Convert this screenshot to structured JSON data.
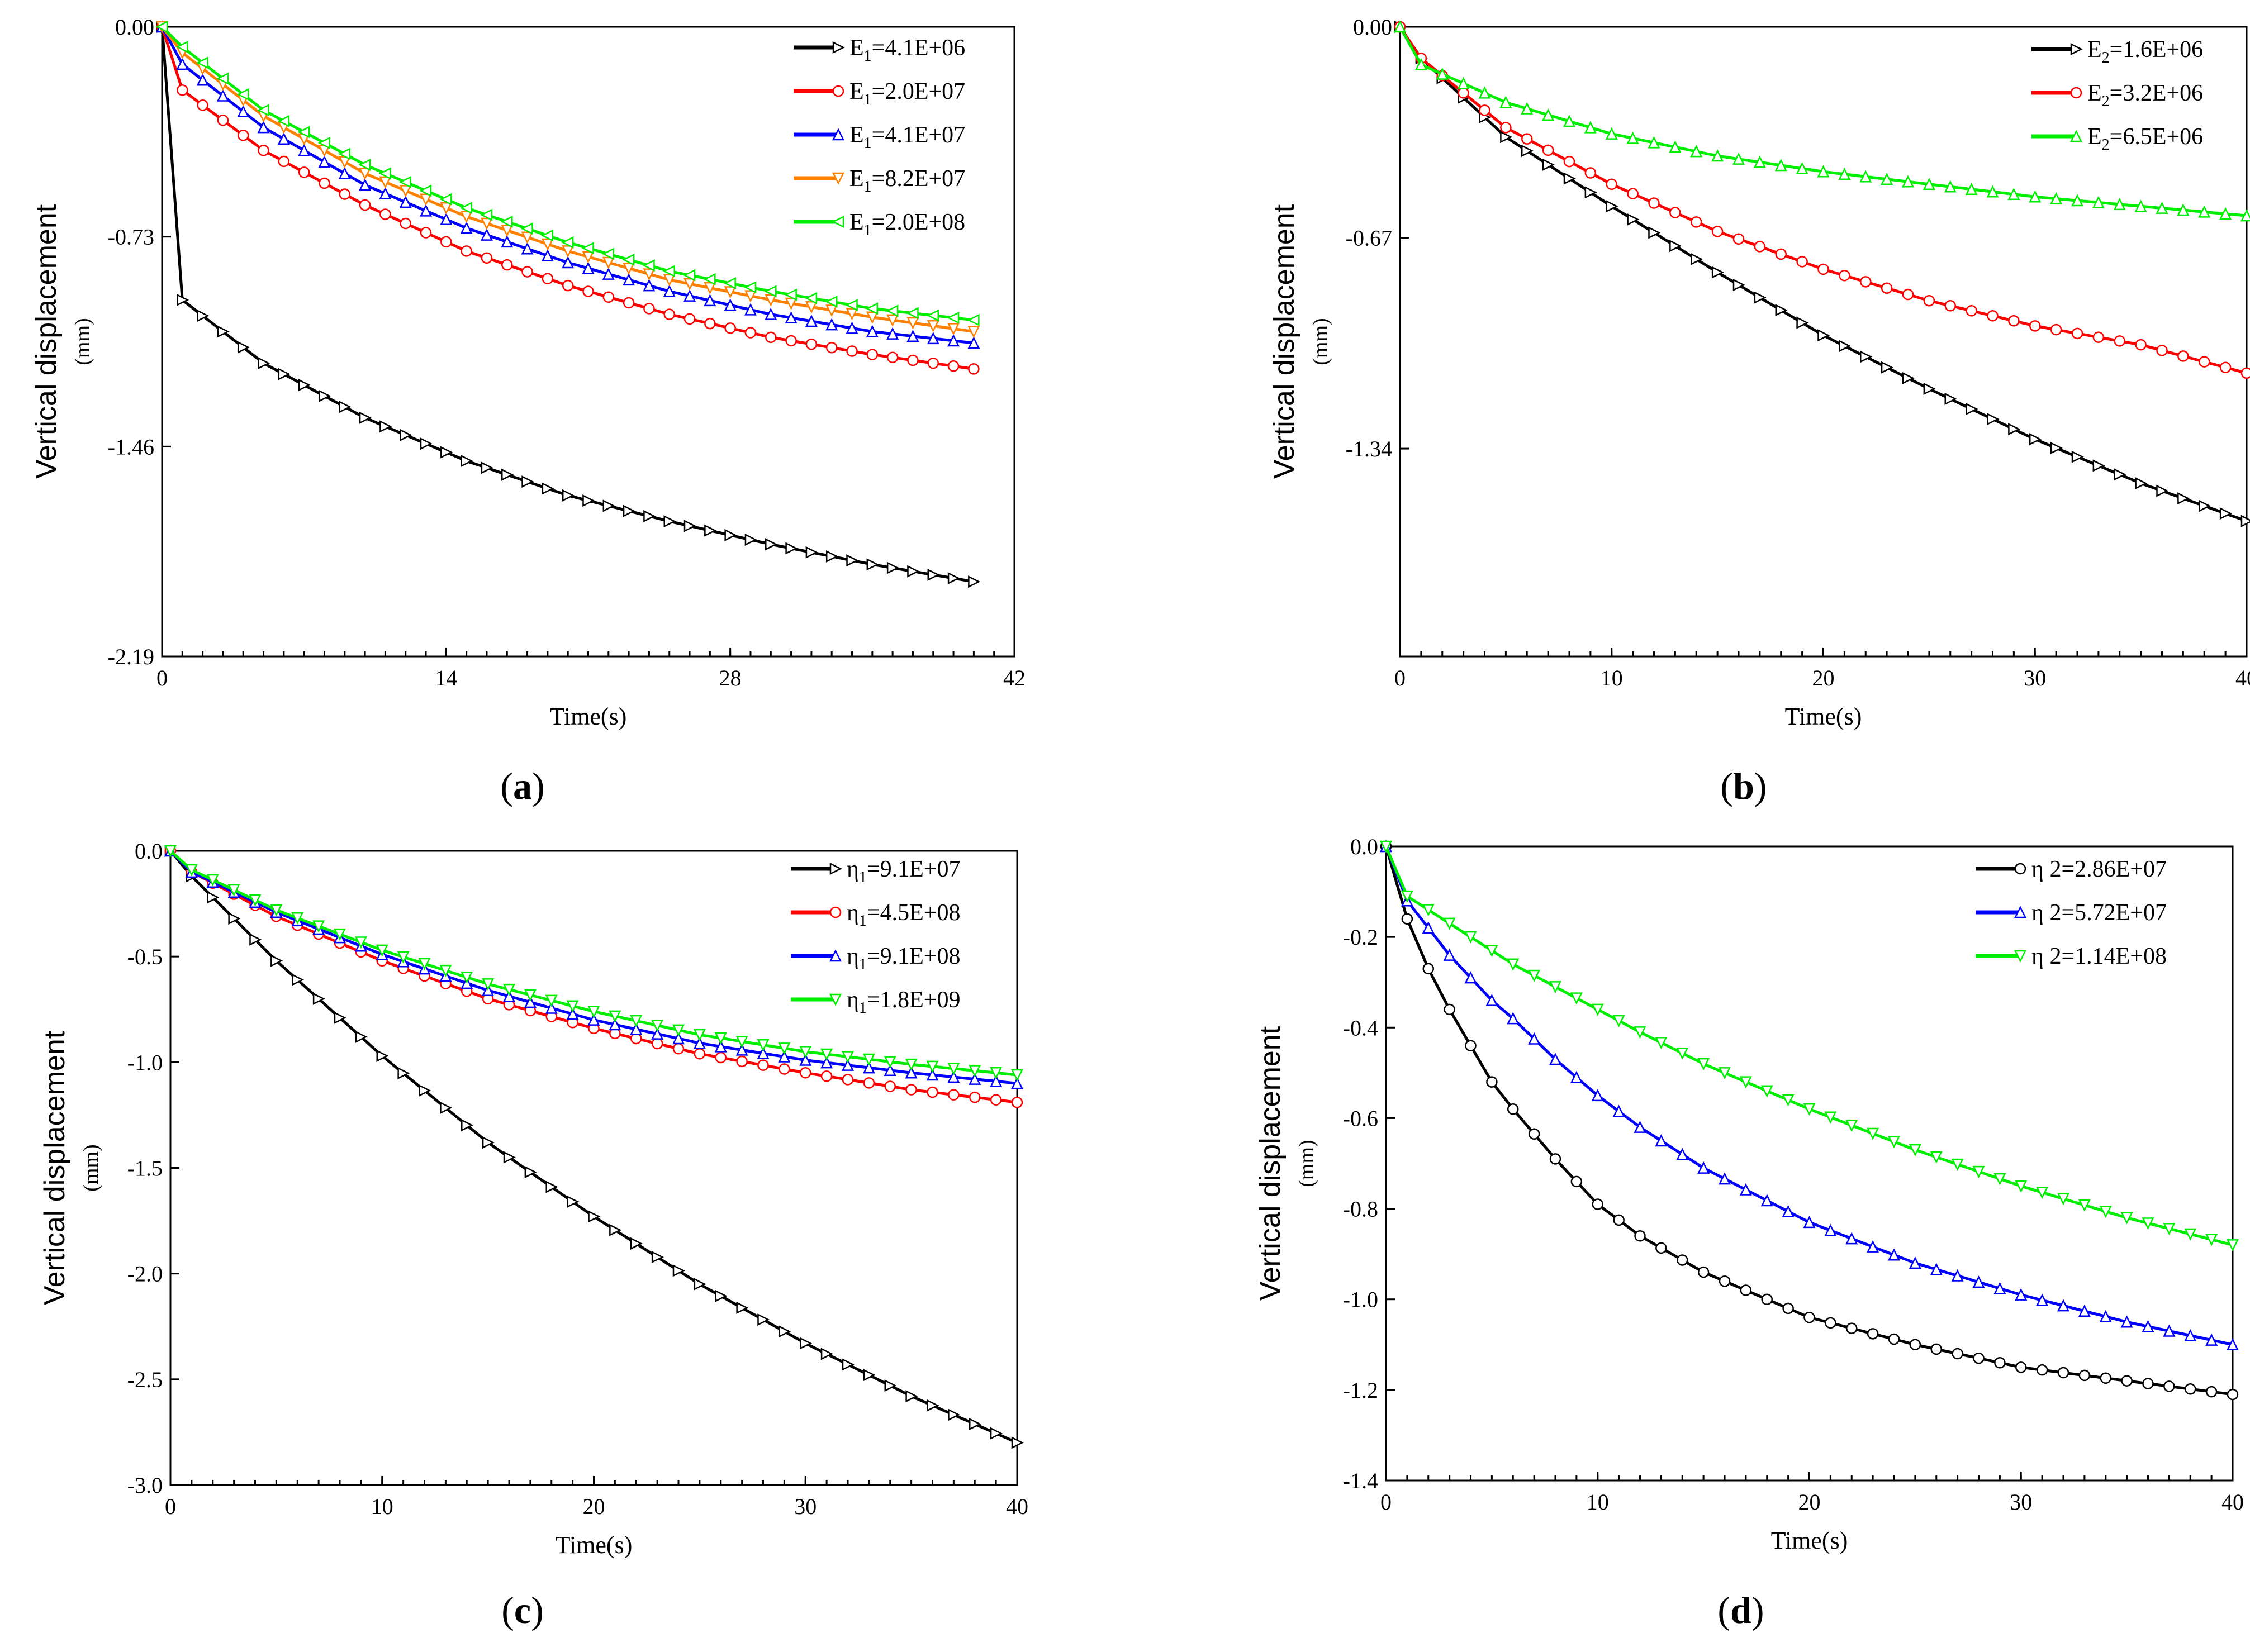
{
  "figure": {
    "xlabel": "Time(s)",
    "ylabel_main": "Vertical displacement",
    "ylabel_unit": "(mm)"
  },
  "chart_data": [
    {
      "type": "line",
      "panel": "a",
      "caption": "(a)",
      "caption_letter": "a",
      "xlim": [
        0,
        42
      ],
      "ylim": [
        -2.19,
        0.0
      ],
      "xticks": [
        "0",
        "14",
        "28",
        "42"
      ],
      "xtick_values": [
        0,
        14,
        28,
        42
      ],
      "yticks": [
        "0.00",
        "-0.73",
        "-1.46",
        "-2.19"
      ],
      "ytick_values": [
        0.0,
        -0.73,
        -1.46,
        -2.19
      ],
      "xlabel": "Time(s)",
      "ylabel": "Vertical displacement (mm)",
      "legend_position": "top-right",
      "series": [
        {
          "name": "E1=4.1E+06",
          "legend_prefix": "E",
          "legend_sub": "1",
          "legend_suffix": "=4.1E+06",
          "color": "#000000",
          "marker": "triangle-right",
          "x": [
            0,
            1,
            5,
            10,
            15,
            20,
            25,
            30,
            35,
            40
          ],
          "values": [
            0.0,
            -0.95,
            -1.17,
            -1.36,
            -1.51,
            -1.63,
            -1.72,
            -1.8,
            -1.87,
            -1.93
          ]
        },
        {
          "name": "E1=2.0E+07",
          "legend_prefix": "E",
          "legend_sub": "1",
          "legend_suffix": "=2.0E+07",
          "color": "#ff0000",
          "marker": "circle",
          "x": [
            0,
            1,
            5,
            10,
            15,
            20,
            25,
            30,
            35,
            40
          ],
          "values": [
            0.0,
            -0.22,
            -0.43,
            -0.62,
            -0.78,
            -0.9,
            -1.0,
            -1.08,
            -1.14,
            -1.19
          ]
        },
        {
          "name": "E1=4.1E+07",
          "legend_prefix": "E",
          "legend_sub": "1",
          "legend_suffix": "=4.1E+07",
          "color": "#0000ff",
          "marker": "triangle-up",
          "x": [
            0,
            1,
            5,
            10,
            15,
            20,
            25,
            30,
            35,
            40
          ],
          "values": [
            0.0,
            -0.13,
            -0.35,
            -0.55,
            -0.7,
            -0.82,
            -0.92,
            -1.0,
            -1.06,
            -1.1
          ]
        },
        {
          "name": "E1=8.2E+07",
          "legend_prefix": "E",
          "legend_sub": "1",
          "legend_suffix": "=8.2E+07",
          "color": "#ff8000",
          "marker": "triangle-down",
          "x": [
            0,
            1,
            5,
            10,
            15,
            20,
            25,
            30,
            35,
            40
          ],
          "values": [
            0.0,
            -0.09,
            -0.31,
            -0.51,
            -0.66,
            -0.78,
            -0.88,
            -0.95,
            -1.01,
            -1.06
          ]
        },
        {
          "name": "E1=2.0E+08",
          "legend_prefix": "E",
          "legend_sub": "1",
          "legend_suffix": "=2.0E+08",
          "color": "#00ee00",
          "marker": "triangle-left",
          "x": [
            0,
            1,
            5,
            10,
            15,
            20,
            25,
            30,
            35,
            40
          ],
          "values": [
            0.0,
            -0.07,
            -0.29,
            -0.48,
            -0.63,
            -0.75,
            -0.85,
            -0.92,
            -0.98,
            -1.02
          ]
        }
      ]
    },
    {
      "type": "line",
      "panel": "b",
      "caption": "(b)",
      "caption_letter": "b",
      "xlim": [
        0,
        40
      ],
      "ylim": [
        -2.0,
        0.0
      ],
      "xticks": [
        "0",
        "10",
        "20",
        "30",
        "40"
      ],
      "xtick_values": [
        0,
        10,
        20,
        30,
        40
      ],
      "yticks": [
        "0.00",
        "-0.67",
        "-1.34"
      ],
      "ytick_values": [
        0.0,
        -0.67,
        -1.34
      ],
      "xlabel": "Time(s)",
      "ylabel": "Vertical displacement (mm)",
      "legend_position": "top-right",
      "series": [
        {
          "name": "E2=1.6E+06",
          "legend_prefix": "E",
          "legend_sub": "2",
          "legend_suffix": "=1.6E+06",
          "color": "#000000",
          "marker": "triangle-right",
          "x": [
            0,
            1,
            5,
            10,
            15,
            20,
            25,
            30,
            35,
            40
          ],
          "values": [
            0.0,
            -0.1,
            -0.35,
            -0.57,
            -0.78,
            -0.98,
            -1.15,
            -1.31,
            -1.45,
            -1.57
          ]
        },
        {
          "name": "E2=3.2E+06",
          "legend_prefix": "E",
          "legend_sub": "2",
          "legend_suffix": "=3.2E+06",
          "color": "#ff0000",
          "marker": "circle",
          "x": [
            0,
            1,
            5,
            10,
            15,
            20,
            25,
            30,
            35,
            40
          ],
          "values": [
            0.0,
            -0.1,
            -0.32,
            -0.5,
            -0.65,
            -0.77,
            -0.87,
            -0.95,
            -1.01,
            -1.1
          ]
        },
        {
          "name": "E2=6.5E+06",
          "legend_prefix": "E",
          "legend_sub": "2",
          "legend_suffix": "=6.5E+06",
          "color": "#00ee00",
          "marker": "triangle-up",
          "x": [
            0,
            1,
            5,
            10,
            15,
            20,
            25,
            30,
            35,
            40
          ],
          "values": [
            0.0,
            -0.12,
            -0.24,
            -0.34,
            -0.41,
            -0.46,
            -0.5,
            -0.54,
            -0.57,
            -0.6
          ]
        }
      ]
    },
    {
      "type": "line",
      "panel": "c",
      "caption": "(c)",
      "caption_letter": "c",
      "xlim": [
        0,
        40
      ],
      "ylim": [
        -3.0,
        0.0
      ],
      "xticks": [
        "0",
        "10",
        "20",
        "30",
        "40"
      ],
      "xtick_values": [
        0,
        10,
        20,
        30,
        40
      ],
      "yticks": [
        "0.0",
        "-0.5",
        "-1.0",
        "-1.5",
        "-2.0",
        "-2.5",
        "-3.0"
      ],
      "ytick_values": [
        0.0,
        -0.5,
        -1.0,
        -1.5,
        -2.0,
        -2.5,
        -3.0
      ],
      "xlabel": "Time(s)",
      "ylabel": "Vertical displacement (mm)",
      "legend_position": "top-right",
      "series": [
        {
          "name": "η1=9.1E+07",
          "legend_prefix": "η",
          "legend_sub": "1",
          "legend_suffix": "=9.1E+07",
          "color": "#000000",
          "marker": "triangle-right",
          "x": [
            0,
            1,
            5,
            10,
            15,
            20,
            25,
            30,
            35,
            40
          ],
          "values": [
            0.0,
            -0.12,
            -0.52,
            -0.97,
            -1.38,
            -1.73,
            -2.05,
            -2.33,
            -2.58,
            -2.8
          ]
        },
        {
          "name": "η1=4.5E+08",
          "legend_prefix": "η",
          "legend_sub": "1",
          "legend_suffix": "=4.5E+08",
          "color": "#ff0000",
          "marker": "circle",
          "x": [
            0,
            1,
            5,
            10,
            15,
            20,
            25,
            30,
            35,
            40
          ],
          "values": [
            0.0,
            -0.1,
            -0.31,
            -0.52,
            -0.7,
            -0.84,
            -0.96,
            -1.05,
            -1.13,
            -1.19
          ]
        },
        {
          "name": "η1=9.1E+08",
          "legend_prefix": "η",
          "legend_sub": "1",
          "legend_suffix": "=9.1E+08",
          "color": "#0000ff",
          "marker": "triangle-up",
          "x": [
            0,
            1,
            5,
            10,
            15,
            20,
            25,
            30,
            35,
            40
          ],
          "values": [
            0.0,
            -0.1,
            -0.29,
            -0.49,
            -0.66,
            -0.8,
            -0.91,
            -0.99,
            -1.05,
            -1.1
          ]
        },
        {
          "name": "η1=1.8E+09",
          "legend_prefix": "η",
          "legend_sub": "1",
          "legend_suffix": "=1.8E+09",
          "color": "#00ee00",
          "marker": "triangle-down",
          "x": [
            0,
            1,
            5,
            10,
            15,
            20,
            25,
            30,
            35,
            40
          ],
          "values": [
            0.0,
            -0.09,
            -0.28,
            -0.47,
            -0.63,
            -0.76,
            -0.87,
            -0.95,
            -1.01,
            -1.06
          ]
        }
      ]
    },
    {
      "type": "line",
      "panel": "d",
      "caption": "(d)",
      "caption_letter": "d",
      "xlim": [
        0,
        40
      ],
      "ylim": [
        -1.4,
        0.0
      ],
      "xticks": [
        "0",
        "10",
        "20",
        "30",
        "40"
      ],
      "xtick_values": [
        0,
        10,
        20,
        30,
        40
      ],
      "yticks": [
        "0.0",
        "-0.2",
        "-0.4",
        "-0.6",
        "-0.8",
        "-1.0",
        "-1.2",
        "-1.4"
      ],
      "ytick_values": [
        0.0,
        -0.2,
        -0.4,
        -0.6,
        -0.8,
        -1.0,
        -1.2,
        -1.4
      ],
      "xlabel": "Time(s)",
      "ylabel": "Vertical displacement (mm)",
      "legend_position": "top-right",
      "series": [
        {
          "name": "η 2=2.86E+07",
          "legend_prefix": "η 2=2.86E+07",
          "legend_sub": "",
          "legend_suffix": "",
          "color": "#000000",
          "marker": "circle",
          "x": [
            0,
            1,
            2,
            3,
            4,
            5,
            6,
            8,
            10,
            12,
            15,
            20,
            25,
            30,
            35,
            40
          ],
          "values": [
            0.0,
            -0.16,
            -0.27,
            -0.36,
            -0.44,
            -0.52,
            -0.58,
            -0.69,
            -0.79,
            -0.86,
            -0.94,
            -1.04,
            -1.1,
            -1.15,
            -1.18,
            -1.21
          ]
        },
        {
          "name": "η 2=5.72E+07",
          "legend_prefix": "η 2=5.72E+07",
          "legend_sub": "",
          "legend_suffix": "",
          "color": "#0000ff",
          "marker": "triangle-up",
          "x": [
            0,
            1,
            2,
            3,
            4,
            5,
            6,
            8,
            10,
            12,
            15,
            20,
            25,
            30,
            35,
            40
          ],
          "values": [
            0.0,
            -0.12,
            -0.18,
            -0.24,
            -0.29,
            -0.34,
            -0.38,
            -0.47,
            -0.55,
            -0.62,
            -0.71,
            -0.83,
            -0.92,
            -0.99,
            -1.05,
            -1.1
          ]
        },
        {
          "name": "η 2=1.14E+08",
          "legend_prefix": "η 2=1.14E+08",
          "legend_sub": "",
          "legend_suffix": "",
          "color": "#00ee00",
          "marker": "triangle-down",
          "x": [
            0,
            1,
            2,
            3,
            4,
            5,
            6,
            8,
            10,
            12,
            15,
            20,
            25,
            30,
            35,
            40
          ],
          "values": [
            0.0,
            -0.11,
            -0.14,
            -0.17,
            -0.2,
            -0.23,
            -0.26,
            -0.31,
            -0.36,
            -0.41,
            -0.48,
            -0.58,
            -0.67,
            -0.75,
            -0.82,
            -0.88
          ]
        }
      ]
    }
  ]
}
